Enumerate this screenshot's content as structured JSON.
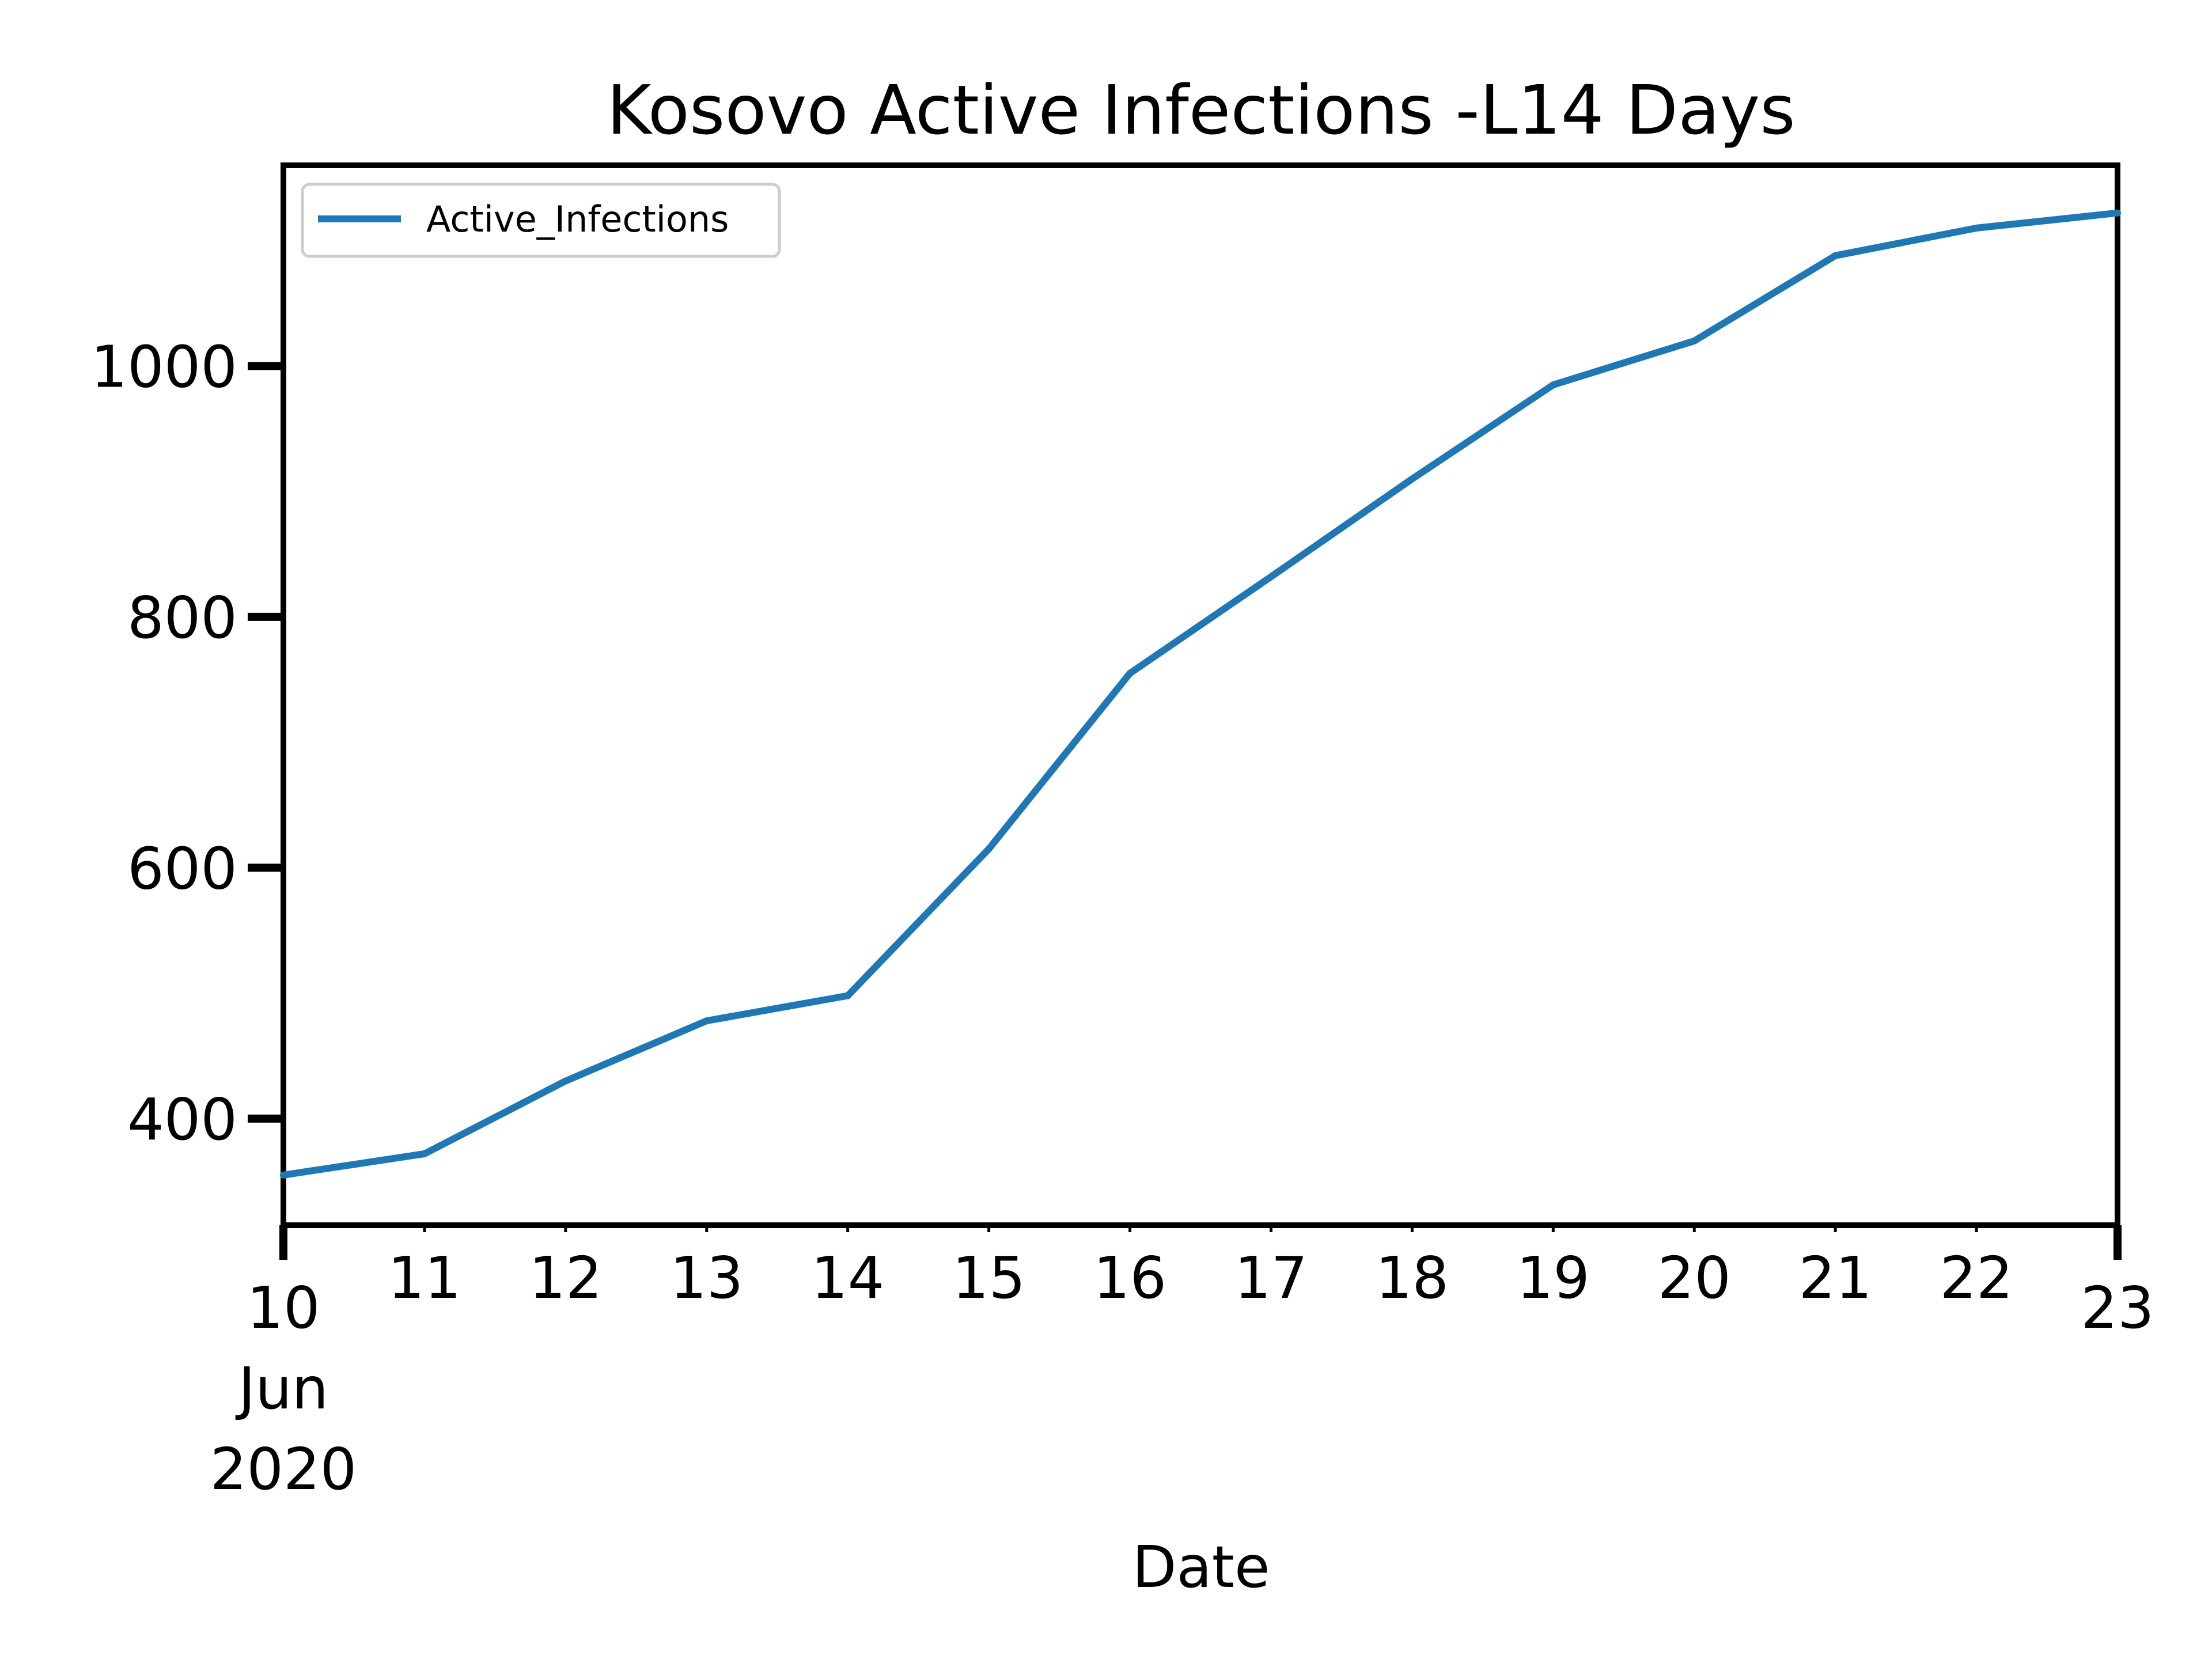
{
  "chart_data": {
    "type": "line",
    "title": "Kosovo Active Infections -L14 Days",
    "xlabel": "Date",
    "ylabel": "",
    "x_tick_labels": [
      {
        "date": "2020-06-10",
        "label": "10",
        "sub": [
          "Jun",
          "2020"
        ]
      },
      {
        "date": "2020-06-11",
        "label": "11"
      },
      {
        "date": "2020-06-12",
        "label": "12"
      },
      {
        "date": "2020-06-13",
        "label": "13"
      },
      {
        "date": "2020-06-14",
        "label": "14"
      },
      {
        "date": "2020-06-15",
        "label": "15"
      },
      {
        "date": "2020-06-16",
        "label": "16"
      },
      {
        "date": "2020-06-17",
        "label": "17"
      },
      {
        "date": "2020-06-18",
        "label": "18"
      },
      {
        "date": "2020-06-19",
        "label": "19"
      },
      {
        "date": "2020-06-20",
        "label": "20"
      },
      {
        "date": "2020-06-21",
        "label": "21"
      },
      {
        "date": "2020-06-22",
        "label": "22"
      },
      {
        "date": "2020-06-23",
        "label": "23"
      }
    ],
    "y_ticks": [
      400,
      600,
      800,
      1000
    ],
    "ylim": [
      315,
      1160
    ],
    "xlim": [
      "2020-06-10",
      "2020-06-23"
    ],
    "legend": {
      "position": "top-left",
      "entries": [
        "Active_Infections"
      ]
    },
    "grid": false,
    "series": [
      {
        "name": "Active_Infections",
        "color": "#1f77b4",
        "x": [
          "2020-06-10",
          "2020-06-11",
          "2020-06-12",
          "2020-06-13",
          "2020-06-14",
          "2020-06-15",
          "2020-06-16",
          "2020-06-17",
          "2020-06-18",
          "2020-06-19",
          "2020-06-20",
          "2020-06-21",
          "2020-06-22",
          "2020-06-23"
        ],
        "values": [
          355,
          372,
          430,
          478,
          498,
          615,
          755,
          832,
          910,
          985,
          1020,
          1088,
          1110,
          1122
        ]
      }
    ]
  }
}
